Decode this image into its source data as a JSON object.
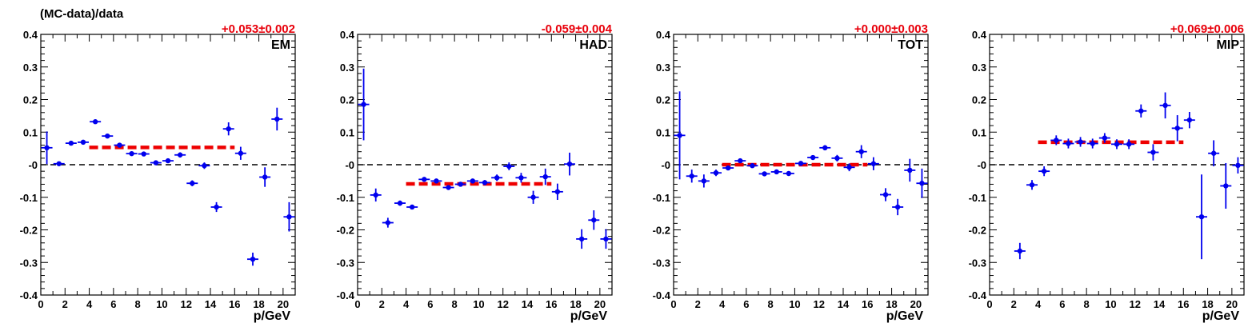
{
  "figure": {
    "ylabel": "(MC-data)/data",
    "xlabel": "p/GeV"
  },
  "colors": {
    "points": "#0000ee",
    "fit": "#ee0000",
    "fit_text": "#e8000b",
    "reference_line": "#000000"
  },
  "chart_data": [
    {
      "type": "scatter",
      "label": "EM",
      "fit_label": "+0.053±0.002",
      "fit": {
        "value": 0.053,
        "x_range": [
          4,
          16
        ]
      },
      "reference": 0,
      "xlim": [
        0,
        21
      ],
      "ylim": [
        -0.4,
        0.4
      ],
      "xticks": [
        0,
        2,
        4,
        6,
        8,
        10,
        12,
        14,
        16,
        18,
        20
      ],
      "yticks": [
        -0.4,
        -0.3,
        -0.2,
        -0.1,
        0,
        0.1,
        0.2,
        0.3,
        0.4
      ],
      "ytick_labels": [
        "-0.4",
        "-0.3",
        "-0.2",
        "-0.1",
        "-0",
        "0.1",
        "0.2",
        "0.3",
        "0.4"
      ],
      "x": [
        0.5,
        1.5,
        2.5,
        3.5,
        4.5,
        5.5,
        6.5,
        7.5,
        8.5,
        9.5,
        10.5,
        11.5,
        12.5,
        13.5,
        14.5,
        15.5,
        16.5,
        17.5,
        18.5,
        19.5,
        20.5
      ],
      "y": [
        0.052,
        0.003,
        0.066,
        0.069,
        0.132,
        0.088,
        0.06,
        0.034,
        0.033,
        0.006,
        0.012,
        0.03,
        -0.057,
        -0.003,
        -0.13,
        0.11,
        0.035,
        -0.29,
        -0.038,
        0.14,
        -0.16
      ],
      "yerr": [
        0.05,
        0.004,
        0.004,
        0.004,
        0.005,
        0.005,
        0.005,
        0.005,
        0.005,
        0.005,
        0.006,
        0.008,
        0.009,
        0.01,
        0.015,
        0.02,
        0.02,
        0.02,
        0.03,
        0.035,
        0.045
      ]
    },
    {
      "type": "scatter",
      "label": "HAD",
      "fit_label": "-0.059±0.004",
      "fit": {
        "value": -0.059,
        "x_range": [
          4,
          16
        ]
      },
      "reference": 0,
      "xlim": [
        0,
        21
      ],
      "ylim": [
        -0.4,
        0.4
      ],
      "xticks": [
        0,
        2,
        4,
        6,
        8,
        10,
        12,
        14,
        16,
        18,
        20
      ],
      "yticks": [
        -0.4,
        -0.3,
        -0.2,
        -0.1,
        0,
        0.1,
        0.2,
        0.3,
        0.4
      ],
      "ytick_labels": [
        "-0.4",
        "-0.3",
        "-0.2",
        "-0.1",
        "-0",
        "0.1",
        "0.2",
        "0.3",
        "0.4"
      ],
      "x": [
        0.5,
        1.5,
        2.5,
        3.5,
        4.5,
        5.5,
        6.5,
        7.5,
        8.5,
        9.5,
        10.5,
        11.5,
        12.5,
        13.5,
        14.5,
        15.5,
        16.5,
        17.5,
        18.5,
        19.5,
        20.5
      ],
      "y": [
        0.185,
        -0.093,
        -0.178,
        -0.118,
        -0.13,
        -0.045,
        -0.05,
        -0.07,
        -0.06,
        -0.05,
        -0.055,
        -0.04,
        -0.005,
        -0.04,
        -0.1,
        -0.037,
        -0.083,
        0.002,
        -0.228,
        -0.17,
        -0.228
      ],
      "yerr": [
        0.11,
        0.02,
        0.015,
        0.008,
        0.006,
        0.005,
        0.005,
        0.006,
        0.006,
        0.007,
        0.008,
        0.01,
        0.012,
        0.015,
        0.02,
        0.025,
        0.025,
        0.035,
        0.03,
        0.03,
        0.03
      ]
    },
    {
      "type": "scatter",
      "label": "TOT",
      "fit_label": "+0.000±0.003",
      "fit": {
        "value": 0.0,
        "x_range": [
          4,
          16
        ]
      },
      "reference": 0,
      "xlim": [
        0,
        21
      ],
      "ylim": [
        -0.4,
        0.4
      ],
      "xticks": [
        0,
        2,
        4,
        6,
        8,
        10,
        12,
        14,
        16,
        18,
        20
      ],
      "yticks": [
        -0.4,
        -0.3,
        -0.2,
        -0.1,
        0,
        0.1,
        0.2,
        0.3,
        0.4
      ],
      "ytick_labels": [
        "-0.4",
        "-0.3",
        "-0.2",
        "-0.1",
        "-0",
        "0.1",
        "0.2",
        "0.3",
        "0.4"
      ],
      "x": [
        0.5,
        1.5,
        2.5,
        3.5,
        4.5,
        5.5,
        6.5,
        7.5,
        8.5,
        9.5,
        10.5,
        11.5,
        12.5,
        13.5,
        14.5,
        15.5,
        16.5,
        17.5,
        18.5,
        19.5,
        20.5
      ],
      "y": [
        0.09,
        -0.035,
        -0.05,
        -0.025,
        -0.01,
        0.012,
        -0.003,
        -0.028,
        -0.022,
        -0.027,
        0.004,
        0.022,
        0.052,
        0.02,
        -0.008,
        0.04,
        0.003,
        -0.092,
        -0.13,
        -0.017,
        -0.057
      ],
      "yerr": [
        0.135,
        0.02,
        0.02,
        0.01,
        0.006,
        0.005,
        0.005,
        0.005,
        0.005,
        0.006,
        0.006,
        0.007,
        0.008,
        0.01,
        0.012,
        0.02,
        0.02,
        0.02,
        0.025,
        0.035,
        0.045
      ]
    },
    {
      "type": "scatter",
      "label": "MIP",
      "fit_label": "+0.069±0.006",
      "fit": {
        "value": 0.069,
        "x_range": [
          4,
          16
        ]
      },
      "reference": 0,
      "xlim": [
        0,
        21
      ],
      "ylim": [
        -0.4,
        0.4
      ],
      "xticks": [
        0,
        2,
        4,
        6,
        8,
        10,
        12,
        14,
        16,
        18,
        20
      ],
      "yticks": [
        -0.4,
        -0.3,
        -0.2,
        -0.1,
        0,
        0.1,
        0.2,
        0.3,
        0.4
      ],
      "ytick_labels": [
        "-0.4",
        "-0.3",
        "-0.2",
        "-0.1",
        "-0",
        "0.1",
        "0.2",
        "0.3",
        "0.4"
      ],
      "x": [
        2.5,
        3.5,
        4.5,
        5.5,
        6.5,
        7.5,
        8.5,
        9.5,
        10.5,
        11.5,
        12.5,
        13.5,
        14.5,
        15.5,
        16.5,
        17.5,
        18.5,
        19.5,
        20.5
      ],
      "y": [
        -0.265,
        -0.062,
        -0.02,
        0.075,
        0.065,
        0.07,
        0.065,
        0.082,
        0.063,
        0.063,
        0.165,
        0.038,
        0.182,
        0.112,
        0.137,
        -0.16,
        0.035,
        -0.065,
        -0.002
      ],
      "yerr": [
        0.025,
        0.015,
        0.015,
        0.015,
        0.015,
        0.015,
        0.015,
        0.015,
        0.015,
        0.015,
        0.02,
        0.025,
        0.04,
        0.04,
        0.025,
        0.13,
        0.04,
        0.07,
        0.025
      ]
    }
  ]
}
